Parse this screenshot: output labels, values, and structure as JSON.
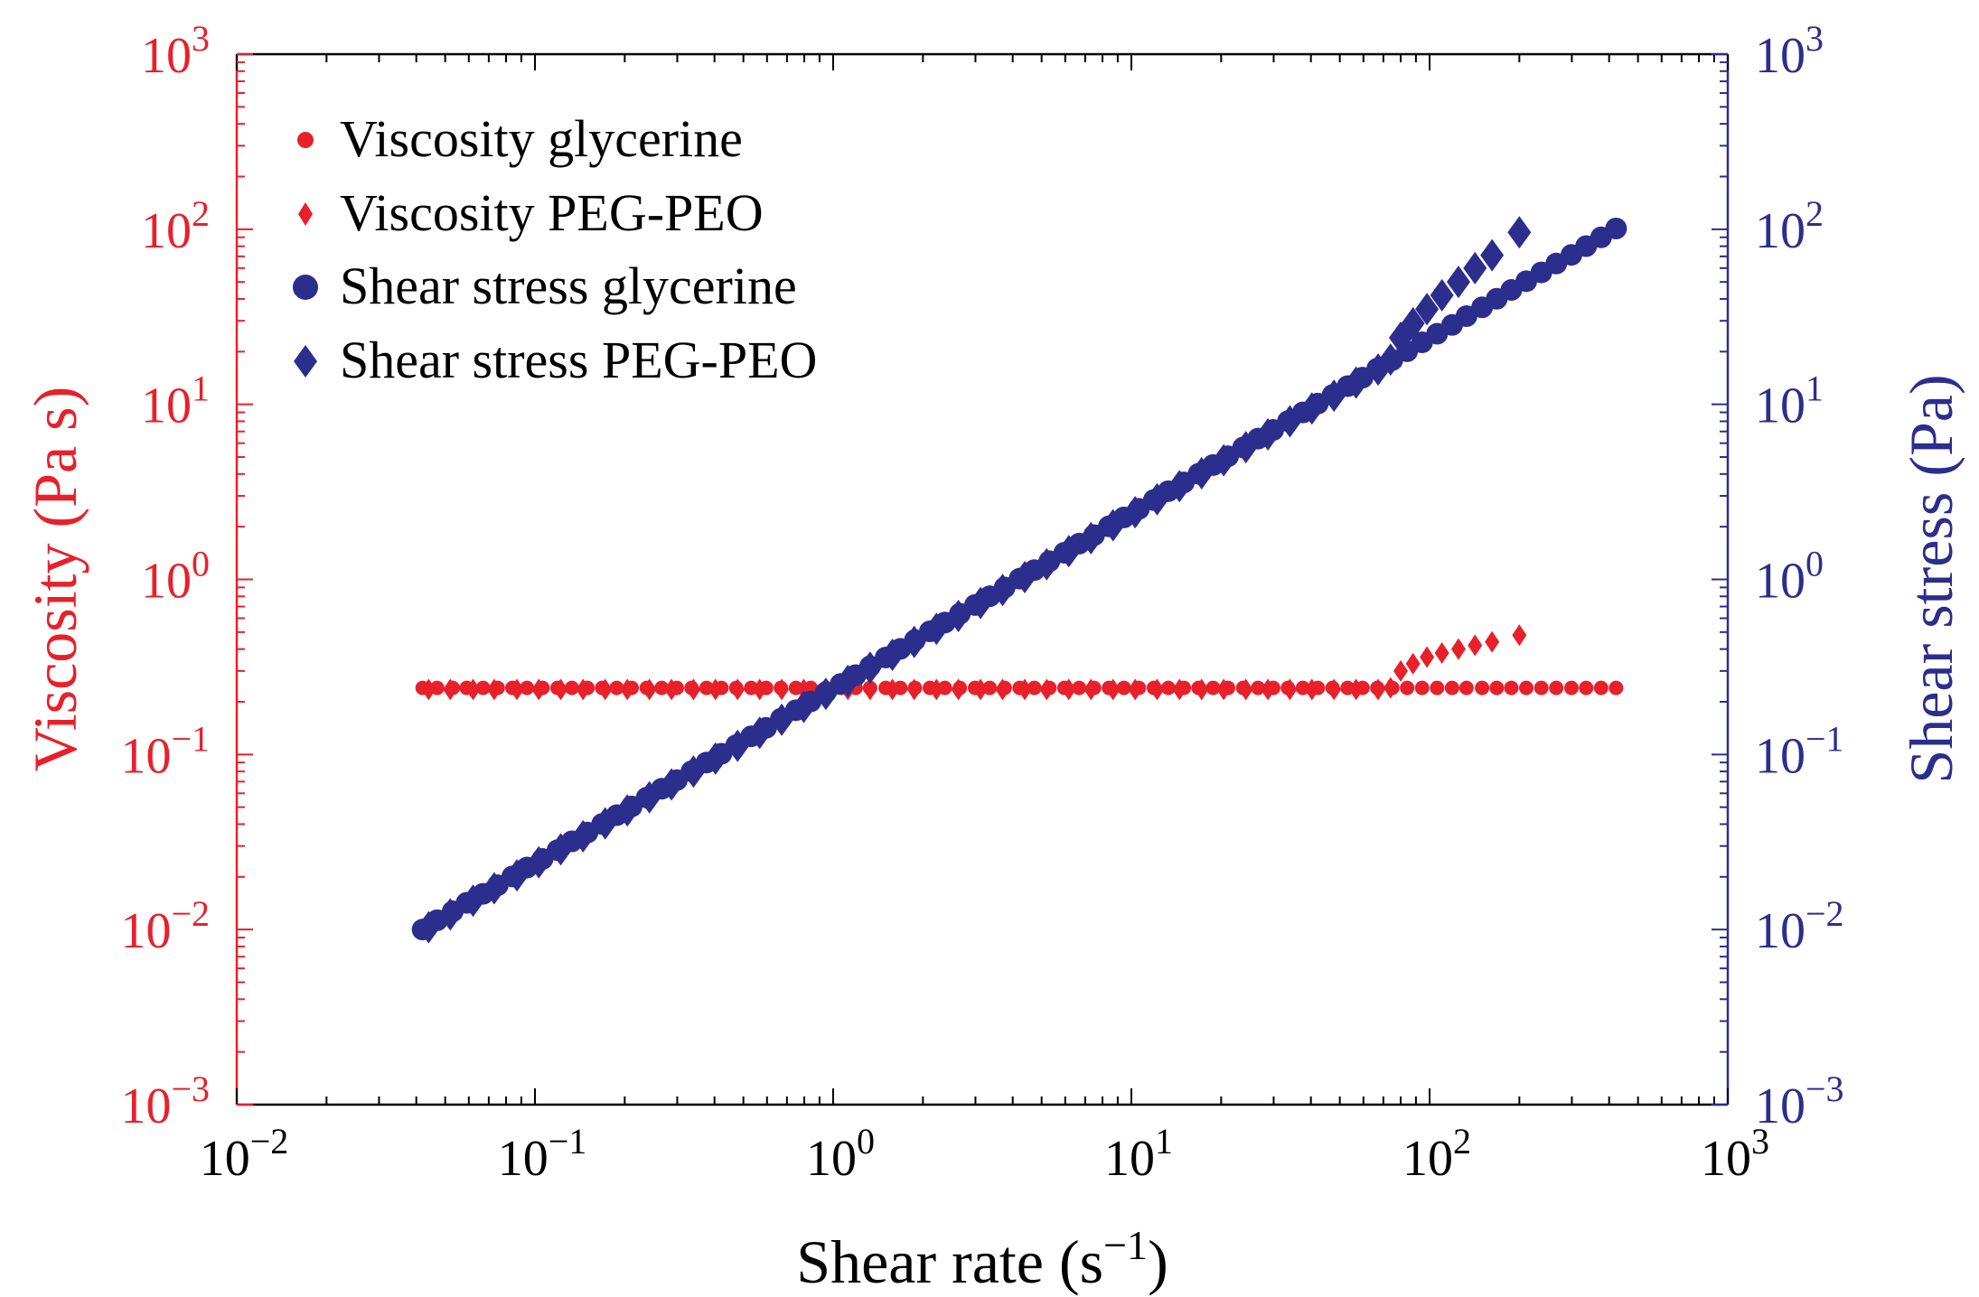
{
  "colors": {
    "viscosity": "#e8202a",
    "stress": "#2b2e8c",
    "axis": "#000000"
  },
  "chart_data": {
    "type": "scatter",
    "title": "",
    "xlabel_main": "Shear rate (s",
    "xlabel_exp": "−1",
    "xlabel_close": ")",
    "ylabel_left": "Viscosity (Pa s)",
    "ylabel_right": "Shear stress (Pa)",
    "xscale": "log",
    "yscale": "log",
    "xlim": [
      0.01,
      1000
    ],
    "ylim_left": [
      0.001,
      1000
    ],
    "ylim_right": [
      0.001,
      1000
    ],
    "grid": false,
    "legend_position": "top-left",
    "x_ticks": [
      {
        "value": 0.01,
        "base": "10",
        "exp": "−2"
      },
      {
        "value": 0.1,
        "base": "10",
        "exp": "−1"
      },
      {
        "value": 1,
        "base": "10",
        "exp": "0"
      },
      {
        "value": 10,
        "base": "10",
        "exp": "1"
      },
      {
        "value": 100,
        "base": "10",
        "exp": "2"
      },
      {
        "value": 1000,
        "base": "10",
        "exp": "3"
      }
    ],
    "y_ticks_left": [
      {
        "value": 0.001,
        "base": "10",
        "exp": "−3"
      },
      {
        "value": 0.01,
        "base": "10",
        "exp": "−2"
      },
      {
        "value": 0.1,
        "base": "10",
        "exp": "−1"
      },
      {
        "value": 1,
        "base": "10",
        "exp": "0"
      },
      {
        "value": 10,
        "base": "10",
        "exp": "1"
      },
      {
        "value": 100,
        "base": "10",
        "exp": "2"
      },
      {
        "value": 1000,
        "base": "10",
        "exp": "3"
      }
    ],
    "y_ticks_right": [
      {
        "value": 0.001,
        "base": "10",
        "exp": "−3"
      },
      {
        "value": 0.01,
        "base": "10",
        "exp": "−2"
      },
      {
        "value": 0.1,
        "base": "10",
        "exp": "−1"
      },
      {
        "value": 1,
        "base": "10",
        "exp": "0"
      },
      {
        "value": 10,
        "base": "10",
        "exp": "1"
      },
      {
        "value": 100,
        "base": "10",
        "exp": "2"
      },
      {
        "value": 1000,
        "base": "10",
        "exp": "3"
      }
    ],
    "series": [
      {
        "name": "Viscosity glycerine",
        "axis": "left",
        "marker": "circle",
        "size": "small",
        "color": "#e8202a",
        "x": [
          0.042,
          0.047,
          0.053,
          0.059,
          0.067,
          0.075,
          0.084,
          0.094,
          0.106,
          0.119,
          0.133,
          0.15,
          0.168,
          0.188,
          0.211,
          0.237,
          0.266,
          0.299,
          0.335,
          0.376,
          0.422,
          0.473,
          0.531,
          0.596,
          0.668,
          0.75,
          0.841,
          0.944,
          1.06,
          1.19,
          1.33,
          1.5,
          1.68,
          1.88,
          2.11,
          2.37,
          2.66,
          2.99,
          3.35,
          3.76,
          4.22,
          4.73,
          5.31,
          5.96,
          6.68,
          7.5,
          8.41,
          9.44,
          10.6,
          11.9,
          13.3,
          15.0,
          16.8,
          18.8,
          21.1,
          23.7,
          26.6,
          29.9,
          33.5,
          37.6,
          42.2,
          47.3,
          53.1,
          59.6,
          66.8,
          75.0,
          84.1,
          94.4,
          106,
          119,
          133,
          150,
          168,
          188,
          211,
          237,
          266,
          299,
          335,
          376,
          422
        ],
        "y": [
          0.24,
          0.24,
          0.24,
          0.24,
          0.24,
          0.24,
          0.24,
          0.24,
          0.24,
          0.24,
          0.24,
          0.24,
          0.24,
          0.24,
          0.24,
          0.24,
          0.24,
          0.24,
          0.24,
          0.24,
          0.24,
          0.24,
          0.24,
          0.24,
          0.24,
          0.24,
          0.24,
          0.24,
          0.24,
          0.24,
          0.24,
          0.24,
          0.24,
          0.24,
          0.24,
          0.24,
          0.24,
          0.24,
          0.24,
          0.24,
          0.24,
          0.24,
          0.24,
          0.24,
          0.24,
          0.24,
          0.24,
          0.24,
          0.24,
          0.24,
          0.24,
          0.24,
          0.24,
          0.24,
          0.24,
          0.24,
          0.24,
          0.24,
          0.24,
          0.24,
          0.24,
          0.24,
          0.24,
          0.24,
          0.24,
          0.24,
          0.24,
          0.24,
          0.24,
          0.24,
          0.24,
          0.24,
          0.24,
          0.24,
          0.24,
          0.24,
          0.24,
          0.24,
          0.24,
          0.24,
          0.24
        ]
      },
      {
        "name": "Viscosity PEG-PEO",
        "axis": "left",
        "marker": "diamond",
        "size": "small",
        "color": "#e8202a",
        "x": [
          0.044,
          0.052,
          0.062,
          0.073,
          0.087,
          0.103,
          0.122,
          0.145,
          0.172,
          0.204,
          0.242,
          0.287,
          0.34,
          0.403,
          0.478,
          0.567,
          0.672,
          0.797,
          0.945,
          1.12,
          1.33,
          1.58,
          1.87,
          2.22,
          2.63,
          3.12,
          3.7,
          4.39,
          5.2,
          6.17,
          7.32,
          8.68,
          10.3,
          12.2,
          14.5,
          17.2,
          20.4,
          24.2,
          28.7,
          34.0,
          40.3,
          47.8,
          56.7,
          67.2,
          74.0,
          80.0,
          88.0,
          98.0,
          110,
          125,
          142,
          162,
          200
        ],
        "y": [
          0.235,
          0.235,
          0.235,
          0.235,
          0.235,
          0.235,
          0.235,
          0.235,
          0.235,
          0.235,
          0.235,
          0.235,
          0.235,
          0.235,
          0.235,
          0.235,
          0.235,
          0.235,
          0.235,
          0.235,
          0.235,
          0.235,
          0.235,
          0.235,
          0.235,
          0.235,
          0.235,
          0.235,
          0.235,
          0.235,
          0.235,
          0.235,
          0.235,
          0.235,
          0.235,
          0.235,
          0.235,
          0.235,
          0.235,
          0.235,
          0.235,
          0.235,
          0.235,
          0.235,
          0.24,
          0.3,
          0.33,
          0.36,
          0.38,
          0.4,
          0.42,
          0.44,
          0.48
        ]
      },
      {
        "name": "Shear stress glycerine",
        "axis": "right",
        "marker": "circle",
        "size": "large",
        "color": "#2b2e8c",
        "x": [
          0.042,
          0.047,
          0.053,
          0.059,
          0.067,
          0.075,
          0.084,
          0.094,
          0.106,
          0.119,
          0.133,
          0.15,
          0.168,
          0.188,
          0.211,
          0.237,
          0.266,
          0.299,
          0.335,
          0.376,
          0.422,
          0.473,
          0.531,
          0.596,
          0.668,
          0.75,
          0.841,
          0.944,
          1.06,
          1.19,
          1.33,
          1.5,
          1.68,
          1.88,
          2.11,
          2.37,
          2.66,
          2.99,
          3.35,
          3.76,
          4.22,
          4.73,
          5.31,
          5.96,
          6.68,
          7.5,
          8.41,
          9.44,
          10.6,
          11.9,
          13.3,
          15.0,
          16.8,
          18.8,
          21.1,
          23.7,
          26.6,
          29.9,
          33.5,
          37.6,
          42.2,
          47.3,
          53.1,
          59.6,
          66.8,
          75.0,
          84.1,
          94.4,
          106,
          119,
          133,
          150,
          168,
          188,
          211,
          237,
          266,
          299,
          335,
          376,
          422
        ],
        "y": [
          0.01,
          0.0113,
          0.0127,
          0.0142,
          0.016,
          0.0179,
          0.0201,
          0.0226,
          0.0253,
          0.0284,
          0.0319,
          0.0358,
          0.0401,
          0.045,
          0.0505,
          0.0567,
          0.0637,
          0.0714,
          0.0801,
          0.0899,
          0.101,
          0.113,
          0.127,
          0.142,
          0.16,
          0.179,
          0.201,
          0.226,
          0.253,
          0.284,
          0.319,
          0.358,
          0.401,
          0.45,
          0.505,
          0.567,
          0.637,
          0.714,
          0.801,
          0.899,
          1.01,
          1.13,
          1.27,
          1.42,
          1.6,
          1.79,
          2.01,
          2.26,
          2.53,
          2.84,
          3.19,
          3.58,
          4.01,
          4.5,
          5.05,
          5.67,
          6.37,
          7.14,
          8.01,
          8.99,
          10.1,
          11.3,
          12.7,
          14.2,
          16.0,
          17.9,
          20.1,
          22.6,
          25.3,
          28.4,
          31.9,
          35.8,
          40.1,
          45.0,
          50.5,
          56.7,
          63.7,
          71.4,
          80.1,
          89.9,
          101
        ]
      },
      {
        "name": "Shear stress PEG-PEO",
        "axis": "right",
        "marker": "diamond",
        "size": "large",
        "color": "#2b2e8c",
        "x": [
          0.044,
          0.052,
          0.062,
          0.073,
          0.087,
          0.103,
          0.122,
          0.145,
          0.172,
          0.204,
          0.242,
          0.287,
          0.34,
          0.403,
          0.478,
          0.567,
          0.672,
          0.797,
          0.945,
          1.12,
          1.33,
          1.58,
          1.87,
          2.22,
          2.63,
          3.12,
          3.7,
          4.39,
          5.2,
          6.17,
          7.32,
          8.68,
          10.3,
          12.2,
          14.5,
          17.2,
          20.4,
          24.2,
          28.7,
          34.0,
          40.3,
          47.8,
          56.7,
          67.2,
          74.0,
          80.0,
          88.0,
          98.0,
          110,
          125,
          142,
          162,
          200
        ],
        "y": [
          0.0103,
          0.0122,
          0.0146,
          0.0172,
          0.0204,
          0.0242,
          0.0287,
          0.0341,
          0.0404,
          0.0479,
          0.0569,
          0.0674,
          0.0799,
          0.0947,
          0.112,
          0.133,
          0.158,
          0.187,
          0.222,
          0.263,
          0.313,
          0.371,
          0.439,
          0.522,
          0.618,
          0.733,
          0.87,
          1.03,
          1.22,
          1.45,
          1.72,
          2.04,
          2.42,
          2.87,
          3.41,
          4.04,
          4.79,
          5.69,
          6.74,
          7.99,
          9.47,
          11.2,
          13.3,
          15.8,
          18.0,
          24.0,
          29.0,
          35.0,
          42.0,
          50.0,
          60.0,
          71.0,
          96.0
        ]
      }
    ]
  }
}
